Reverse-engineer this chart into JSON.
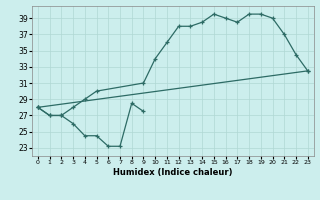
{
  "xlabel": "Humidex (Indice chaleur)",
  "x_ticks": [
    0,
    1,
    2,
    3,
    4,
    5,
    6,
    7,
    8,
    9,
    10,
    11,
    12,
    13,
    14,
    15,
    16,
    17,
    18,
    19,
    20,
    21,
    22,
    23
  ],
  "xlim": [
    -0.5,
    23.5
  ],
  "ylim": [
    22,
    40.5
  ],
  "y_ticks": [
    23,
    25,
    27,
    29,
    31,
    33,
    35,
    37,
    39
  ],
  "bg_color": "#cceeed",
  "grid_color": "#b0d8d4",
  "line_color": "#2d6b65",
  "line1_x": [
    0,
    1,
    2,
    3,
    4,
    5,
    6,
    7,
    8,
    9
  ],
  "line1_y": [
    28,
    27,
    27,
    26,
    24.5,
    24.5,
    23.2,
    23.2,
    28.5,
    27.5
  ],
  "line2_x": [
    0,
    23
  ],
  "line2_y": [
    28,
    32.5
  ],
  "line3_x": [
    0,
    1,
    2,
    3,
    4,
    5,
    9,
    10,
    11,
    12,
    13,
    14,
    15,
    16,
    17,
    18,
    19,
    20,
    21,
    22,
    23
  ],
  "line3_y": [
    28,
    27,
    27,
    28,
    29,
    30,
    31,
    34,
    36,
    38,
    38,
    38.5,
    39.5,
    39,
    38.5,
    39.5,
    39.5,
    39,
    37,
    34.5,
    32.5
  ]
}
